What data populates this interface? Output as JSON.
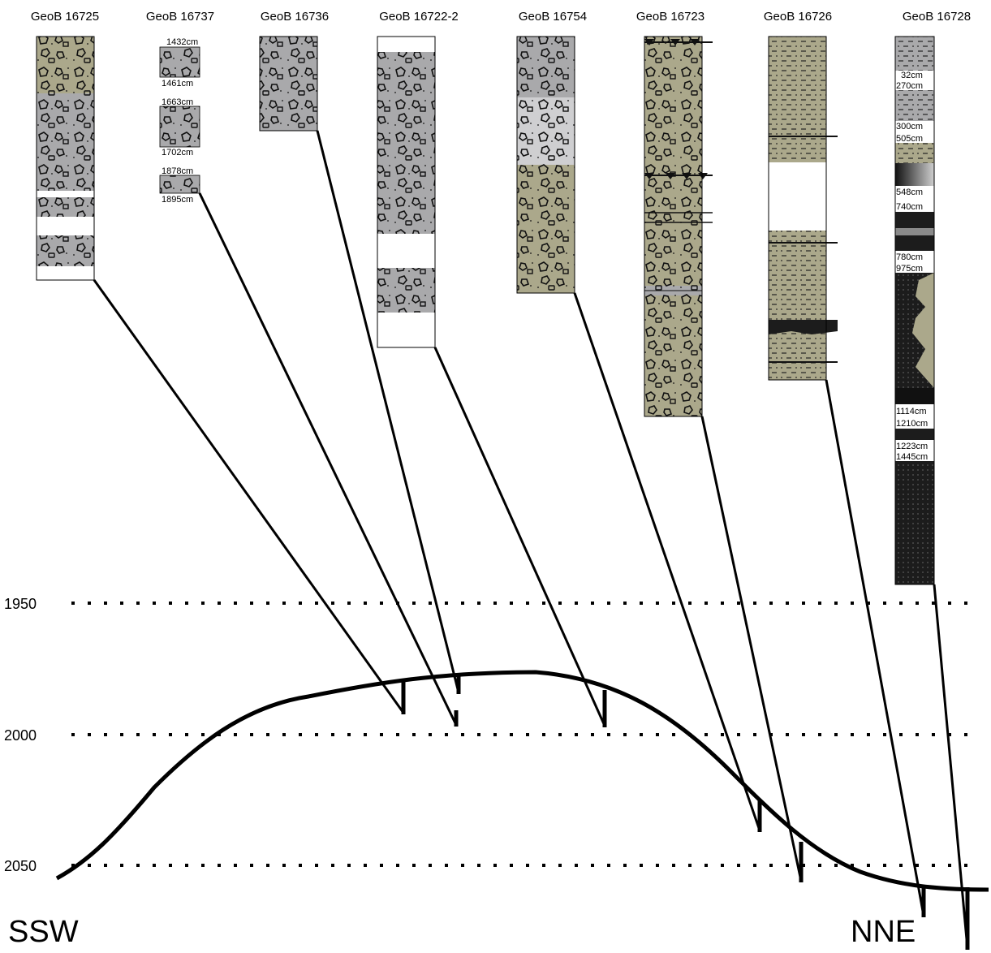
{
  "colors": {
    "olive": "#aba88b",
    "gray": "#a9a9ab",
    "lightgray": "#cfcfd1",
    "dark": "#1c1c1c",
    "line": "#000000",
    "white": "#ffffff"
  },
  "directions": {
    "left": "SSW",
    "right": "NNE"
  },
  "depth_levels": [
    {
      "label": "1950",
      "value": 1950
    },
    {
      "label": "2000",
      "value": 2000
    },
    {
      "label": "2050",
      "value": 2050
    }
  ],
  "cores": [
    {
      "id": "c16725",
      "title": "GeoB 16725",
      "cm_labels": []
    },
    {
      "id": "c16737",
      "title": "GeoB 16737",
      "cm_labels": [
        "1432cm",
        "1461cm",
        "1663cm",
        "1702cm",
        "1878cm",
        "1895cm"
      ]
    },
    {
      "id": "c16736",
      "title": "GeoB 16736",
      "cm_labels": []
    },
    {
      "id": "c16722",
      "title": "GeoB 16722-2",
      "cm_labels": []
    },
    {
      "id": "c16754",
      "title": "GeoB 16754",
      "cm_labels": []
    },
    {
      "id": "c16723",
      "title": "GeoB 16723",
      "cm_labels": []
    },
    {
      "id": "c16726",
      "title": "GeoB 16726",
      "cm_labels": []
    },
    {
      "id": "c16728",
      "title": "GeoB 16728",
      "cm_labels": [
        "32cm",
        "270cm",
        "300cm",
        "505cm",
        "548cm",
        "740cm",
        "780cm",
        "975cm",
        "1114cm",
        "1210cm",
        "1223cm",
        "1445cm"
      ]
    }
  ]
}
